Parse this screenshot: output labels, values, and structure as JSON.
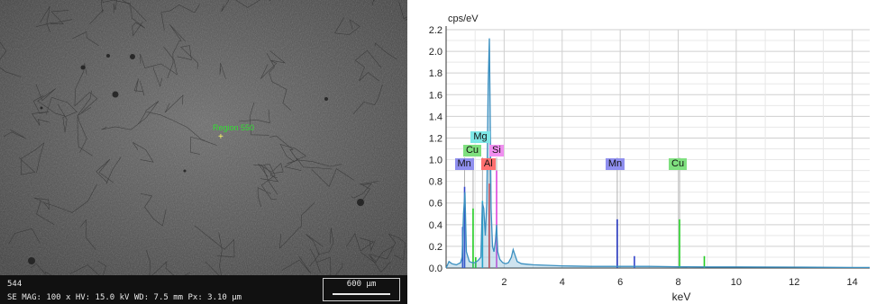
{
  "sem_image": {
    "sample_id": "544",
    "params_line": "SE  MAG: 100 x  HV: 15.0 kV  WD: 7.5 mm  Px: 3.10 µm",
    "scale_bar_label": "600 µm",
    "spot_label": "Region 550",
    "spot_marker": "+"
  },
  "chart_data": {
    "type": "line",
    "ylabel": "cps/eV",
    "xlabel": "keV",
    "xlim": [
      0,
      14.6
    ],
    "ylim": [
      0,
      2.2
    ],
    "x_ticks": [
      2,
      4,
      6,
      8,
      10,
      12,
      14
    ],
    "y_ticks": [
      0.0,
      0.2,
      0.4,
      0.6,
      0.8,
      1.0,
      1.2,
      1.4,
      1.6,
      1.8,
      2.0,
      2.2
    ],
    "grid": true,
    "series": [
      {
        "color": "#3a8fc0",
        "x": [
          0.0,
          0.1,
          0.2,
          0.35,
          0.5,
          0.55,
          0.6,
          0.65,
          0.7,
          0.8,
          0.9,
          1.0,
          1.1,
          1.2,
          1.25,
          1.3,
          1.35,
          1.4,
          1.45,
          1.49,
          1.52,
          1.55,
          1.6,
          1.65,
          1.7,
          1.74,
          1.78,
          1.85,
          1.95,
          2.05,
          2.15,
          2.25,
          2.31,
          2.36,
          2.45,
          2.6,
          2.8,
          3.0,
          3.5,
          4.0,
          5.0,
          6.0,
          6.5,
          7.0,
          8.0,
          9.0,
          10.0,
          12.0,
          14.0,
          14.6
        ],
        "y": [
          0.0,
          0.06,
          0.04,
          0.03,
          0.05,
          0.1,
          0.5,
          0.7,
          0.15,
          0.06,
          0.05,
          0.05,
          0.07,
          0.1,
          0.6,
          0.55,
          0.3,
          0.6,
          1.7,
          2.12,
          1.4,
          0.55,
          0.2,
          0.15,
          0.25,
          0.4,
          0.15,
          0.08,
          0.05,
          0.04,
          0.05,
          0.1,
          0.17,
          0.13,
          0.06,
          0.04,
          0.035,
          0.03,
          0.025,
          0.02,
          0.015,
          0.015,
          0.015,
          0.015,
          0.012,
          0.01,
          0.01,
          0.008,
          0.005,
          0.005
        ]
      }
    ],
    "element_markers": [
      {
        "label": "Mn",
        "energy": 0.637,
        "peak": 0.75,
        "tag_color": "#8f8fef",
        "line_color": "#3344cc"
      },
      {
        "label": "Cu",
        "energy": 0.93,
        "peak": 0.55,
        "tag_color": "#7fe07f",
        "line_color": "#22cc22"
      },
      {
        "label": "Mg",
        "energy": 1.254,
        "peak": 0.62,
        "tag_color": "#7fe8e8",
        "line_color": "#22aacc"
      },
      {
        "label": "Al",
        "energy": 1.487,
        "peak": 0.78,
        "tag_color": "#ff7070",
        "line_color": "#dd3333"
      },
      {
        "label": "Si",
        "energy": 1.74,
        "peak": 0.9,
        "tag_color": "#f08ff0",
        "line_color": "#dd44dd"
      },
      {
        "label": "Mn",
        "energy": 5.899,
        "peak": 0.45,
        "tag_color": "#8f8fef",
        "line_color": "#2233bb"
      },
      {
        "label": "Cu",
        "energy": 8.046,
        "peak": 0.45,
        "tag_color": "#7fe07f",
        "line_color": "#22cc22"
      }
    ],
    "extra_peaks": [
      {
        "energy": 0.57,
        "value": 0.38,
        "color": "#3344cc"
      },
      {
        "energy": 6.49,
        "value": 0.11,
        "color": "#3344cc"
      },
      {
        "energy": 8.9,
        "value": 0.11,
        "color": "#22cc22"
      },
      {
        "energy": 1.02,
        "value": 0.1,
        "color": "#22cc22"
      }
    ]
  }
}
